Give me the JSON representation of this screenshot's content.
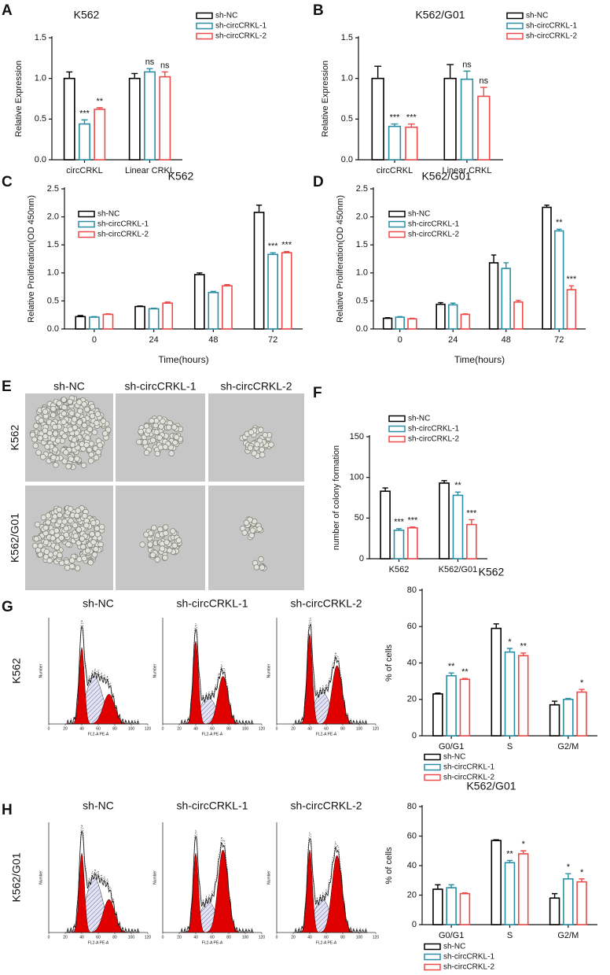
{
  "chart_data": [
    {
      "label": "A",
      "type": "bar",
      "title": "K562",
      "ylabel": "Relative Expression",
      "categories": [
        "circCRKL",
        "Linear CRKL"
      ],
      "ylim": [
        0,
        1.5
      ],
      "yticks": [
        {
          "value": 0,
          "label": "0.0"
        },
        {
          "value": 0.5,
          "label": "0.5"
        },
        {
          "value": 1,
          "label": "1.0"
        },
        {
          "value": 1.5,
          "label": "1.5"
        }
      ],
      "legend": "right",
      "series": [
        {
          "name": "sh-NC",
          "color": "#000000",
          "values": [
            1.0,
            1.0
          ],
          "errors": [
            0.08,
            0.06
          ],
          "significance": [
            null,
            null
          ]
        },
        {
          "name": "sh-circCRKL-1",
          "color": "#2a8ea3",
          "values": [
            0.44,
            1.08
          ],
          "errors": [
            0.05,
            0.04
          ],
          "significance": [
            "***",
            "ns"
          ]
        },
        {
          "name": "sh-circCRKL-2",
          "color": "#ef4a4a",
          "values": [
            0.62,
            1.02
          ],
          "errors": [
            0.02,
            0.06
          ],
          "significance": [
            "**",
            "ns"
          ]
        }
      ]
    },
    {
      "label": "B",
      "type": "bar",
      "title": "K562/G01",
      "ylabel": "Relative Expression",
      "categories": [
        "circCRKL",
        "Linear CRKL"
      ],
      "ylim": [
        0,
        1.5
      ],
      "yticks": [
        {
          "value": 0,
          "label": "0.0"
        },
        {
          "value": 0.5,
          "label": "0.5"
        },
        {
          "value": 1,
          "label": "1.0"
        },
        {
          "value": 1.5,
          "label": "1.5"
        }
      ],
      "legend": "right",
      "series": [
        {
          "name": "sh-NC",
          "color": "#000000",
          "values": [
            1.0,
            1.0
          ],
          "errors": [
            0.15,
            0.17
          ],
          "significance": [
            null,
            null
          ]
        },
        {
          "name": "sh-circCRKL-1",
          "color": "#2a8ea3",
          "values": [
            0.41,
            0.99
          ],
          "errors": [
            0.03,
            0.1
          ],
          "significance": [
            "***",
            "ns"
          ]
        },
        {
          "name": "sh-circCRKL-2",
          "color": "#ef4a4a",
          "values": [
            0.4,
            0.78
          ],
          "errors": [
            0.04,
            0.11
          ],
          "significance": [
            "***",
            "ns"
          ]
        }
      ]
    },
    {
      "label": "C",
      "type": "bar",
      "title": "K562",
      "ylabel": "Relative Proliferation(OD 450nm)",
      "xlabel": "Time(hours)",
      "categories": [
        "0",
        "24",
        "48",
        "72"
      ],
      "ylim": [
        0,
        2.5
      ],
      "yticks": [
        {
          "value": 0,
          "label": "0.0"
        },
        {
          "value": 0.5,
          "label": "0.5"
        },
        {
          "value": 1,
          "label": "1.0"
        },
        {
          "value": 1.5,
          "label": "1.5"
        },
        {
          "value": 2,
          "label": "2.0"
        },
        {
          "value": 2.5,
          "label": "2.5"
        }
      ],
      "legend": "upper left",
      "series": [
        {
          "name": "sh-NC",
          "color": "#000000",
          "values": [
            0.22,
            0.4,
            0.97,
            2.08
          ],
          "errors": [
            0.02,
            0.01,
            0.03,
            0.13
          ],
          "significance": [
            null,
            null,
            null,
            null
          ]
        },
        {
          "name": "sh-circCRKL-1",
          "color": "#2a8ea3",
          "values": [
            0.21,
            0.36,
            0.65,
            1.33
          ],
          "errors": [
            0.01,
            0.01,
            0.02,
            0.03
          ],
          "significance": [
            null,
            null,
            null,
            "***"
          ]
        },
        {
          "name": "sh-circCRKL-2",
          "color": "#ef4a4a",
          "values": [
            0.26,
            0.46,
            0.77,
            1.36
          ],
          "errors": [
            0.01,
            0.02,
            0.02,
            0.02
          ],
          "significance": [
            null,
            null,
            null,
            "***"
          ]
        }
      ]
    },
    {
      "label": "D",
      "type": "bar",
      "title": "K562/G01",
      "ylabel": "Relative Proliferation(OD 450nm)",
      "xlabel": "Time(hours)",
      "categories": [
        "0",
        "24",
        "48",
        "72"
      ],
      "ylim": [
        0,
        2.5
      ],
      "yticks": [
        {
          "value": 0,
          "label": "0.0"
        },
        {
          "value": 0.5,
          "label": "0.5"
        },
        {
          "value": 1,
          "label": "1.0"
        },
        {
          "value": 1.5,
          "label": "1.5"
        },
        {
          "value": 2,
          "label": "2.0"
        },
        {
          "value": 2.5,
          "label": "2.5"
        }
      ],
      "legend": "upper left",
      "series": [
        {
          "name": "sh-NC",
          "color": "#000000",
          "values": [
            0.19,
            0.44,
            1.18,
            2.17
          ],
          "errors": [
            0.01,
            0.03,
            0.14,
            0.04
          ],
          "significance": [
            null,
            null,
            null,
            null
          ]
        },
        {
          "name": "sh-circCRKL-1",
          "color": "#2a8ea3",
          "values": [
            0.21,
            0.43,
            1.08,
            1.75
          ],
          "errors": [
            0.01,
            0.03,
            0.1,
            0.03
          ],
          "significance": [
            null,
            null,
            null,
            "**"
          ]
        },
        {
          "name": "sh-circCRKL-2",
          "color": "#ef4a4a",
          "values": [
            0.18,
            0.26,
            0.48,
            0.7
          ],
          "errors": [
            0.01,
            0.01,
            0.03,
            0.07
          ],
          "significance": [
            null,
            null,
            null,
            "***"
          ]
        }
      ]
    },
    {
      "label": "F",
      "type": "bar",
      "ylabel": "number of colony formation",
      "categories": [
        "K562",
        "K562/G01"
      ],
      "ylim": [
        0,
        150
      ],
      "yticks": [
        0,
        50,
        100,
        150
      ],
      "legend": "upper left",
      "series": [
        {
          "name": "sh-NC",
          "color": "#000000",
          "values": [
            83,
            93
          ],
          "errors": [
            4,
            3
          ],
          "significance": [
            null,
            null
          ]
        },
        {
          "name": "sh-circCRKL-1",
          "color": "#2a8ea3",
          "values": [
            35,
            78
          ],
          "errors": [
            2,
            4
          ],
          "significance": [
            "***",
            "**"
          ]
        },
        {
          "name": "sh-circCRKL-2",
          "color": "#ef4a4a",
          "values": [
            38,
            42
          ],
          "errors": [
            1,
            6
          ],
          "significance": [
            "***",
            "***"
          ]
        }
      ]
    },
    {
      "type": "bar",
      "title": "K562",
      "ylabel": "% of cells",
      "categories": [
        "G0/G1",
        "S",
        "G2/M"
      ],
      "ylim": [
        0,
        80
      ],
      "yticks": [
        0,
        20,
        40,
        60,
        80
      ],
      "legend": "bottom",
      "series": [
        {
          "name": "sh-NC",
          "color": "#000000",
          "values": [
            23,
            59,
            17
          ],
          "errors": [
            0.5,
            2.5,
            2
          ],
          "significance": [
            null,
            null,
            null
          ]
        },
        {
          "name": "sh-circCRKL-1",
          "color": "#2a8ea3",
          "values": [
            33,
            46,
            20
          ],
          "errors": [
            1.5,
            2,
            0.5
          ],
          "significance": [
            "**",
            "*",
            null
          ]
        },
        {
          "name": "sh-circCRKL-2",
          "color": "#ef4a4a",
          "values": [
            31,
            44,
            24
          ],
          "errors": [
            0.5,
            1.5,
            1.5
          ],
          "significance": [
            "**",
            "**",
            "*"
          ]
        }
      ]
    },
    {
      "type": "bar",
      "title": "K562/G01",
      "ylabel": "% of cells",
      "categories": [
        "G0/G1",
        "S",
        "G2/M"
      ],
      "ylim": [
        0,
        80
      ],
      "yticks": [
        0,
        20,
        40,
        60,
        80
      ],
      "legend": "bottom",
      "series": [
        {
          "name": "sh-NC",
          "color": "#000000",
          "values": [
            24,
            57,
            18
          ],
          "errors": [
            3,
            0.5,
            3
          ],
          "significance": [
            null,
            null,
            null
          ]
        },
        {
          "name": "sh-circCRKL-1",
          "color": "#2a8ea3",
          "values": [
            25,
            42,
            31
          ],
          "errors": [
            2,
            1.5,
            3.5
          ],
          "significance": [
            null,
            "**",
            "*"
          ]
        },
        {
          "name": "sh-circCRKL-2",
          "color": "#ef4a4a",
          "values": [
            21,
            48,
            29
          ],
          "errors": [
            0.5,
            2,
            2
          ],
          "significance": [
            null,
            "*",
            "*"
          ]
        }
      ]
    }
  ],
  "colony_images": {
    "label": "E",
    "columns": [
      "sh-NC",
      "sh-circCRKL-1",
      "sh-circCRKL-2"
    ],
    "rows": [
      "K562",
      "K562/G01"
    ]
  },
  "flow_cytometry": {
    "xlabel": "FL2-A PE-A",
    "ylabel": "Number",
    "xticks": [
      0,
      20,
      40,
      60,
      80,
      100,
      120
    ],
    "panels": [
      {
        "label": "G",
        "row": "K562",
        "columns": [
          "sh-NC",
          "sh-circCRKL-1",
          "sh-circCRKL-2"
        ]
      },
      {
        "label": "H",
        "row": "K562/G01",
        "columns": [
          "sh-NC",
          "sh-circCRKL-1",
          "sh-circCRKL-2"
        ]
      }
    ]
  }
}
